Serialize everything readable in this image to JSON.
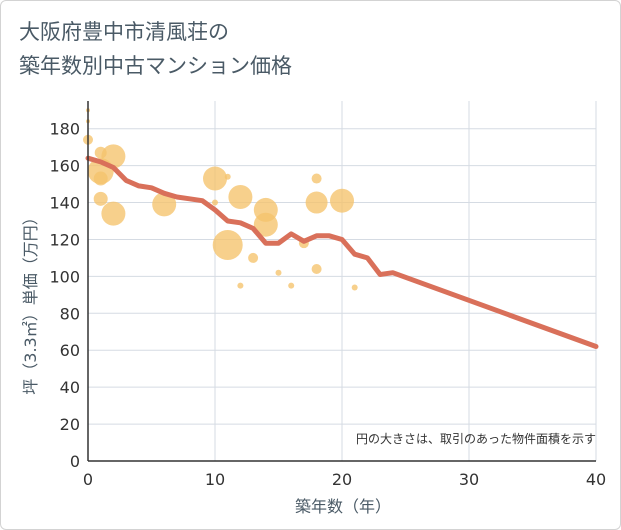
{
  "chart_data": {
    "type": "scatter",
    "title_lines": [
      "大阪府豊中市清風荘の",
      "築年数別中古マンション価格"
    ],
    "xlabel": "築年数（年）",
    "ylabel": "坪（3.3㎡）単価（万円）",
    "note": "円の大きさは、取引のあった物件面積を示す",
    "xlim": [
      0,
      40
    ],
    "ylim": [
      0,
      195
    ],
    "x_ticks": [
      0,
      10,
      20,
      30,
      40
    ],
    "y_ticks": [
      0,
      20,
      40,
      60,
      80,
      100,
      120,
      140,
      160,
      180
    ],
    "grid": true,
    "colors": {
      "bubble": "#f5c36b",
      "trend": "#d9705a",
      "grid": "#d5dbe3",
      "axis": "#333333"
    },
    "bubbles": [
      {
        "x": 0,
        "y": 190,
        "size": 2
      },
      {
        "x": 0,
        "y": 184,
        "size": 2
      },
      {
        "x": 0,
        "y": 174,
        "size": 5
      },
      {
        "x": 1,
        "y": 167,
        "size": 6
      },
      {
        "x": 1,
        "y": 157,
        "size": 13
      },
      {
        "x": 1,
        "y": 153,
        "size": 7
      },
      {
        "x": 1,
        "y": 142,
        "size": 7
      },
      {
        "x": 2,
        "y": 165,
        "size": 12
      },
      {
        "x": 2,
        "y": 134,
        "size": 12
      },
      {
        "x": 6,
        "y": 139,
        "size": 12
      },
      {
        "x": 10,
        "y": 153,
        "size": 12
      },
      {
        "x": 11,
        "y": 154,
        "size": 3
      },
      {
        "x": 10,
        "y": 140,
        "size": 3
      },
      {
        "x": 11,
        "y": 117,
        "size": 15
      },
      {
        "x": 12,
        "y": 143,
        "size": 12
      },
      {
        "x": 12,
        "y": 95,
        "size": 3
      },
      {
        "x": 13,
        "y": 110,
        "size": 5
      },
      {
        "x": 14,
        "y": 136,
        "size": 12
      },
      {
        "x": 14,
        "y": 128,
        "size": 12
      },
      {
        "x": 15,
        "y": 102,
        "size": 3
      },
      {
        "x": 16,
        "y": 95,
        "size": 3
      },
      {
        "x": 17,
        "y": 118,
        "size": 5
      },
      {
        "x": 18,
        "y": 153,
        "size": 5
      },
      {
        "x": 18,
        "y": 140,
        "size": 11
      },
      {
        "x": 18,
        "y": 104,
        "size": 5
      },
      {
        "x": 20,
        "y": 141,
        "size": 12
      },
      {
        "x": 21,
        "y": 94,
        "size": 3
      }
    ],
    "trend": {
      "x": [
        0,
        1,
        2,
        3,
        4,
        5,
        6,
        7,
        8,
        9,
        10,
        11,
        12,
        13,
        14,
        15,
        16,
        17,
        18,
        19,
        20,
        21,
        22,
        23,
        24,
        40
      ],
      "y": [
        164,
        162,
        159,
        152,
        149,
        148,
        145,
        143,
        142,
        141,
        136,
        130,
        129,
        126,
        118,
        118,
        123,
        119,
        122,
        122,
        120,
        112,
        110,
        101,
        102,
        62
      ]
    }
  }
}
